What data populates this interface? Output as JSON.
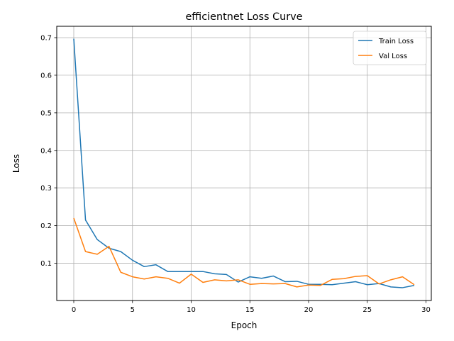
{
  "chart_data": {
    "type": "line",
    "title": "efficientnet Loss Curve",
    "xlabel": "Epoch",
    "ylabel": "Loss",
    "xlim": [
      -1.45,
      30.45
    ],
    "ylim": [
      0.0009,
      0.7302
    ],
    "x_ticks": [
      0,
      5,
      10,
      15,
      20,
      25,
      30
    ],
    "y_ticks": [
      0.1,
      0.2,
      0.3,
      0.4,
      0.5,
      0.6,
      0.7
    ],
    "grid": true,
    "legend": "top-right",
    "x": [
      0,
      1,
      2,
      3,
      4,
      5,
      6,
      7,
      8,
      9,
      10,
      11,
      12,
      13,
      14,
      15,
      16,
      17,
      18,
      19,
      20,
      21,
      22,
      23,
      24,
      25,
      26,
      27,
      28,
      29
    ],
    "series": [
      {
        "name": "Train Loss",
        "color": "#1f77b4",
        "values": [
          0.697,
          0.215,
          0.163,
          0.14,
          0.131,
          0.108,
          0.091,
          0.096,
          0.078,
          0.078,
          0.078,
          0.078,
          0.072,
          0.07,
          0.05,
          0.064,
          0.06,
          0.066,
          0.051,
          0.052,
          0.044,
          0.044,
          0.043,
          0.047,
          0.051,
          0.043,
          0.046,
          0.037,
          0.035,
          0.041
        ]
      },
      {
        "name": "Val Loss",
        "color": "#ff7f0e",
        "values": [
          0.22,
          0.131,
          0.124,
          0.145,
          0.076,
          0.064,
          0.058,
          0.064,
          0.06,
          0.047,
          0.071,
          0.049,
          0.056,
          0.053,
          0.056,
          0.044,
          0.046,
          0.045,
          0.046,
          0.037,
          0.042,
          0.041,
          0.057,
          0.059,
          0.065,
          0.067,
          0.045,
          0.056,
          0.064,
          0.043
        ]
      }
    ]
  }
}
